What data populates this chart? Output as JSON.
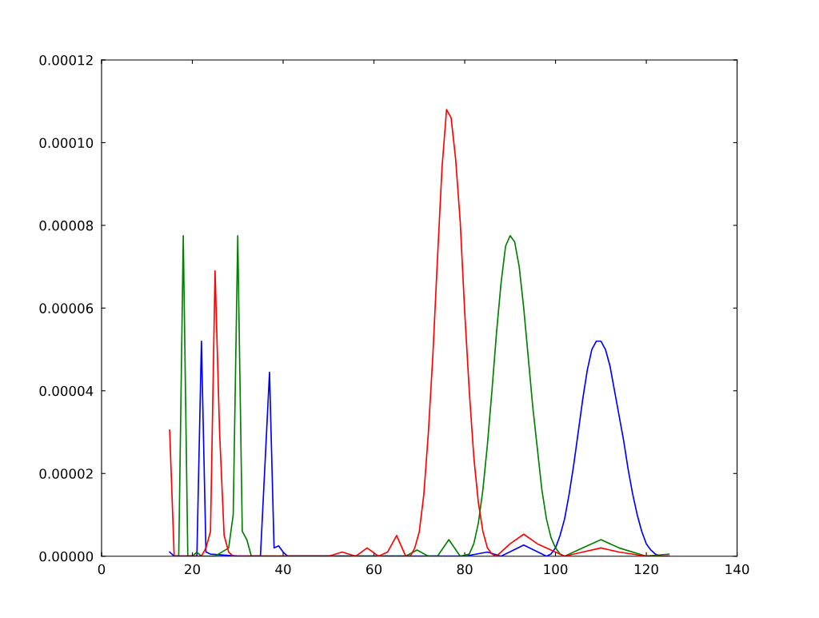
{
  "chart_data": {
    "type": "line",
    "xlim": [
      0,
      140
    ],
    "ylim": [
      0,
      0.00012
    ],
    "xticks": [
      0,
      20,
      40,
      60,
      80,
      100,
      120,
      140
    ],
    "yticks": [
      {
        "value": 0,
        "label": "0.00000"
      },
      {
        "value": 2e-05,
        "label": "0.00002"
      },
      {
        "value": 4e-05,
        "label": "0.00004"
      },
      {
        "value": 6e-05,
        "label": "0.00006"
      },
      {
        "value": 8e-05,
        "label": "0.00008"
      },
      {
        "value": 0.0001,
        "label": "0.00010"
      },
      {
        "value": 0.00012,
        "label": "0.00012"
      }
    ],
    "grid": false,
    "marker": "none",
    "line_style": "solid",
    "series": [
      {
        "color": "#0000ff",
        "x": [
          15,
          16,
          21,
          22,
          23,
          24,
          30,
          35,
          37,
          38,
          39,
          40,
          41,
          50,
          80,
          85,
          88,
          93,
          98,
          99,
          100,
          101,
          102,
          103,
          104,
          105,
          106,
          107,
          108,
          109,
          110,
          111,
          112,
          113,
          114,
          115,
          116,
          117,
          118,
          119,
          120,
          121,
          122,
          123,
          125
        ],
        "values": [
          1e-06,
          0,
          0,
          5.2e-05,
          1e-06,
          5e-07,
          0,
          0,
          4.45e-05,
          2e-06,
          2.5e-06,
          1e-06,
          0,
          0,
          0,
          1e-06,
          0,
          2.7e-06,
          0,
          5e-07,
          2e-06,
          5e-06,
          9e-06,
          1.5e-05,
          2.2e-05,
          3e-05,
          3.8e-05,
          4.5e-05,
          5e-05,
          5.2e-05,
          5.2e-05,
          5e-05,
          4.6e-05,
          4e-05,
          3.4e-05,
          2.8e-05,
          2.1e-05,
          1.5e-05,
          1e-05,
          6e-06,
          3e-06,
          1.5e-06,
          5e-07,
          0,
          0
        ]
      },
      {
        "color": "#008000",
        "x": [
          16,
          17,
          18,
          19,
          20,
          21,
          22,
          25,
          28,
          29,
          30,
          31,
          32,
          33,
          60,
          67,
          69.5,
          72,
          74,
          76.5,
          79,
          81,
          82,
          83,
          84,
          85,
          86,
          87,
          88,
          89,
          90,
          91,
          92,
          93,
          94,
          95,
          96,
          97,
          98,
          99,
          100,
          101,
          102,
          106,
          110,
          114,
          120,
          125
        ],
        "values": [
          0,
          0,
          7.75e-05,
          0,
          0,
          1e-06,
          0,
          0,
          2e-06,
          1e-05,
          7.75e-05,
          6e-06,
          4e-06,
          0,
          0,
          0,
          1.5e-06,
          0,
          0,
          4e-06,
          0,
          5e-07,
          3e-06,
          8e-06,
          1.6e-05,
          2.7e-05,
          4e-05,
          5.4e-05,
          6.6e-05,
          7.5e-05,
          7.75e-05,
          7.6e-05,
          7e-05,
          6e-05,
          4.8e-05,
          3.6e-05,
          2.6e-05,
          1.6e-05,
          9e-06,
          4.5e-06,
          2e-06,
          5e-07,
          0,
          2e-06,
          4e-06,
          2e-06,
          0,
          5e-07
        ]
      },
      {
        "color": "#ff0000",
        "x": [
          15,
          16,
          22,
          23,
          24,
          25,
          26,
          27,
          28,
          29,
          40,
          50,
          53,
          56,
          58.5,
          61,
          63,
          65,
          67,
          68,
          69,
          70,
          71,
          72,
          73,
          74,
          75,
          76,
          77,
          78,
          79,
          80,
          81,
          82,
          83,
          84,
          85,
          86,
          87,
          90,
          93,
          96,
          102,
          106,
          110,
          114,
          120,
          125
        ],
        "values": [
          3.05e-05,
          0,
          0,
          2e-06,
          6e-06,
          6.9e-05,
          3e-05,
          5e-06,
          1e-06,
          0,
          0,
          0,
          1e-06,
          0,
          2e-06,
          0,
          1e-06,
          5e-06,
          0,
          0,
          2e-06,
          6e-06,
          1.5e-05,
          3e-05,
          4.9e-05,
          7.2e-05,
          9.4e-05,
          0.000108,
          0.000106,
          9.6e-05,
          8.1e-05,
          5.9e-05,
          4e-05,
          2.4e-05,
          1.3e-05,
          6e-06,
          2e-06,
          5e-07,
          0,
          3e-06,
          5.3e-06,
          3e-06,
          0,
          1e-06,
          2e-06,
          1e-06,
          0,
          0
        ]
      }
    ]
  }
}
